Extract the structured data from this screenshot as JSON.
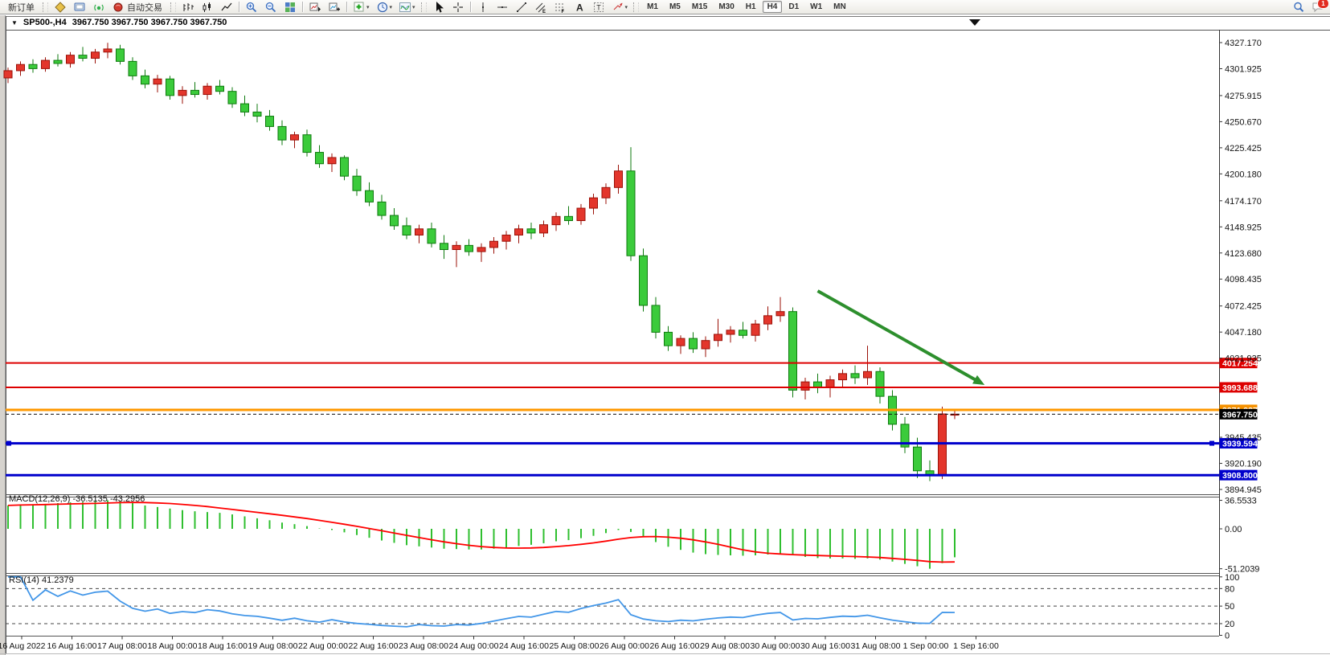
{
  "toolbar": {
    "new_order_label": "新订单",
    "auto_trading_label": "自动交易",
    "timeframes": [
      "M1",
      "M5",
      "M15",
      "M30",
      "H1",
      "H4",
      "D1",
      "W1",
      "MN"
    ],
    "active_timeframe": "H4",
    "notification_badge": "1",
    "items": [
      {
        "kind": "text",
        "name": "new-order-button",
        "label": "新订单"
      },
      {
        "kind": "grip"
      },
      {
        "kind": "icon",
        "name": "market-watch-icon",
        "icon": "quote"
      },
      {
        "kind": "icon",
        "name": "terminal-icon",
        "icon": "terminal"
      },
      {
        "kind": "icon",
        "name": "signals-icon",
        "icon": "signal"
      },
      {
        "kind": "icon-text",
        "name": "auto-trading-button",
        "icon": "autodot",
        "label": "自动交易"
      },
      {
        "kind": "grip"
      },
      {
        "kind": "icon",
        "name": "bar-chart-mode-icon",
        "icon": "barchart"
      },
      {
        "kind": "icon",
        "name": "candlestick-mode-icon",
        "icon": "candle"
      },
      {
        "kind": "icon",
        "name": "line-chart-mode-icon",
        "icon": "linechart"
      },
      {
        "kind": "sep"
      },
      {
        "kind": "icon",
        "name": "zoom-in-icon",
        "icon": "zoomin"
      },
      {
        "kind": "icon",
        "name": "zoom-out-icon",
        "icon": "zoomout"
      },
      {
        "kind": "icon",
        "name": "tile-windows-icon",
        "icon": "tiles"
      },
      {
        "kind": "sep"
      },
      {
        "kind": "icon",
        "name": "profile-icon",
        "icon": "profile"
      },
      {
        "kind": "icon",
        "name": "profile-charts-icon",
        "icon": "profile2"
      },
      {
        "kind": "sep"
      },
      {
        "kind": "icon",
        "name": "new-chart-button",
        "icon": "addchart",
        "dropdown": true
      },
      {
        "kind": "icon",
        "name": "periods-button",
        "icon": "clock",
        "dropdown": true
      },
      {
        "kind": "icon",
        "name": "indicators-button",
        "icon": "wave",
        "dropdown": true
      },
      {
        "kind": "grip"
      },
      {
        "kind": "icon",
        "name": "cursor-tool",
        "icon": "cursor"
      },
      {
        "kind": "icon",
        "name": "crosshair-tool",
        "icon": "crosshair"
      },
      {
        "kind": "sep"
      },
      {
        "kind": "icon",
        "name": "vertical-line-tool",
        "icon": "vline"
      },
      {
        "kind": "icon",
        "name": "horizontal-line-tool",
        "icon": "hline"
      },
      {
        "kind": "icon",
        "name": "trendline-tool",
        "icon": "trend"
      },
      {
        "kind": "icon",
        "name": "channel-tool",
        "icon": "channel"
      },
      {
        "kind": "icon",
        "name": "fibonacci-tool",
        "icon": "fibo"
      },
      {
        "kind": "icon",
        "name": "text-tool",
        "icon": "texta"
      },
      {
        "kind": "icon",
        "name": "text-label-tool",
        "icon": "textt"
      },
      {
        "kind": "icon",
        "name": "shapes-tool",
        "icon": "shapes",
        "dropdown": true
      },
      {
        "kind": "grip"
      },
      {
        "kind": "timeframes"
      },
      {
        "kind": "spacer"
      },
      {
        "kind": "icon",
        "name": "search-icon",
        "icon": "search"
      },
      {
        "kind": "icon",
        "name": "chat-icon",
        "icon": "chat",
        "badge": "1"
      }
    ]
  },
  "chart": {
    "symbol_period": "SP500-,H4",
    "ohlc_text": "3967.750 3967.750 3967.750 3967.750"
  },
  "indicators": {
    "macd_label": "MACD(12,26,9) -36.5135 -43.2956",
    "rsi_label": "RSI(14) 41.2379"
  },
  "price_axis_ticks": [
    "4327.170",
    "4301.925",
    "4275.915",
    "4250.670",
    "4225.425",
    "4200.180",
    "4174.170",
    "4148.925",
    "4123.680",
    "4098.435",
    "4072.425",
    "4047.180",
    "4021.935",
    "3945.435",
    "3920.190",
    "3894.945"
  ],
  "macd_axis_ticks": [
    "36.5533",
    "0.00",
    "-51.2039"
  ],
  "rsi_axis_ticks": [
    "100",
    "80",
    "50",
    "20",
    "0"
  ],
  "rsi_dashed_levels": [
    80,
    50,
    20
  ],
  "horizontal_lines": [
    {
      "label": "4017.254",
      "price": 4017.254,
      "color": "#dd0000",
      "width": 2,
      "dash": null,
      "label_bg": "#dd0000",
      "label_fg": "#ffffff"
    },
    {
      "label": "3993.688",
      "price": 3993.688,
      "color": "#dd0000",
      "width": 2,
      "dash": null,
      "label_bg": "#dd0000",
      "label_fg": "#ffffff"
    },
    {
      "label": "3971.937",
      "price": 3971.937,
      "color": "#ff9900",
      "width": 3,
      "dash": null,
      "label_bg": "#f59100",
      "label_fg": "#ffffff"
    },
    {
      "label": "3967.750",
      "price": 3967.75,
      "color": "#111111",
      "width": 1,
      "dash": "4 3",
      "label_bg": "#000000",
      "label_fg": "#ffffff"
    },
    {
      "label": "3939.594",
      "price": 3939.594,
      "color": "#0000cc",
      "width": 3,
      "dash": null,
      "label_bg": "#0000cc",
      "label_fg": "#ffffff",
      "markers": true
    },
    {
      "label": "3908.800",
      "price": 3908.8,
      "color": "#0000cc",
      "width": 3,
      "dash": null,
      "label_bg": "#0000cc",
      "label_fg": "#ffffff"
    }
  ],
  "chart_data": {
    "type": "candlestick",
    "title": "SP500-,H4",
    "symbol": "SP500-",
    "period": "H4",
    "ylim": [
      3894.945,
      4327.17
    ],
    "x_labels": [
      "16 Aug 2022",
      "16 Aug 16:00",
      "17 Aug 08:00",
      "18 Aug 00:00",
      "18 Aug 16:00",
      "19 Aug 08:00",
      "22 Aug 00:00",
      "22 Aug 16:00",
      "23 Aug 08:00",
      "24 Aug 00:00",
      "24 Aug 16:00",
      "25 Aug 08:00",
      "26 Aug 00:00",
      "26 Aug 16:00",
      "29 Aug 08:00",
      "30 Aug 00:00",
      "30 Aug 16:00",
      "31 Aug 08:00",
      "1 Sep 00:00",
      "1 Sep 16:00"
    ],
    "candles": [
      [
        4293,
        4303,
        4288,
        4300
      ],
      [
        4300,
        4309,
        4295,
        4306
      ],
      [
        4306,
        4311,
        4298,
        4302
      ],
      [
        4302,
        4313,
        4299,
        4310
      ],
      [
        4310,
        4316,
        4304,
        4307
      ],
      [
        4307,
        4318,
        4303,
        4315
      ],
      [
        4315,
        4323,
        4309,
        4312
      ],
      [
        4312,
        4321,
        4307,
        4318
      ],
      [
        4318,
        4327,
        4312,
        4321
      ],
      [
        4321,
        4325,
        4306,
        4309
      ],
      [
        4309,
        4313,
        4291,
        4295
      ],
      [
        4295,
        4301,
        4283,
        4287
      ],
      [
        4287,
        4296,
        4279,
        4292
      ],
      [
        4292,
        4295,
        4272,
        4276
      ],
      [
        4276,
        4285,
        4268,
        4281
      ],
      [
        4281,
        4289,
        4274,
        4277
      ],
      [
        4277,
        4288,
        4272,
        4285
      ],
      [
        4285,
        4291,
        4277,
        4280
      ],
      [
        4280,
        4284,
        4264,
        4268
      ],
      [
        4268,
        4276,
        4256,
        4260
      ],
      [
        4260,
        4268,
        4250,
        4256
      ],
      [
        4256,
        4262,
        4242,
        4246
      ],
      [
        4246,
        4252,
        4228,
        4233
      ],
      [
        4233,
        4241,
        4225,
        4238
      ],
      [
        4238,
        4243,
        4217,
        4221
      ],
      [
        4221,
        4228,
        4206,
        4210
      ],
      [
        4210,
        4220,
        4202,
        4216
      ],
      [
        4216,
        4218,
        4194,
        4198
      ],
      [
        4198,
        4205,
        4179,
        4184
      ],
      [
        4184,
        4192,
        4169,
        4173
      ],
      [
        4173,
        4180,
        4156,
        4160
      ],
      [
        4160,
        4167,
        4146,
        4150
      ],
      [
        4150,
        4158,
        4137,
        4141
      ],
      [
        4141,
        4151,
        4133,
        4147
      ],
      [
        4147,
        4153,
        4129,
        4133
      ],
      [
        4133,
        4141,
        4118,
        4127
      ],
      [
        4127,
        4135,
        4110,
        4131
      ],
      [
        4131,
        4137,
        4121,
        4125
      ],
      [
        4125,
        4133,
        4115,
        4129
      ],
      [
        4129,
        4139,
        4123,
        4135
      ],
      [
        4135,
        4145,
        4127,
        4141
      ],
      [
        4141,
        4151,
        4133,
        4147
      ],
      [
        4147,
        4153,
        4137,
        4143
      ],
      [
        4143,
        4155,
        4139,
        4151
      ],
      [
        4151,
        4163,
        4145,
        4159
      ],
      [
        4159,
        4169,
        4151,
        4155
      ],
      [
        4155,
        4171,
        4151,
        4167
      ],
      [
        4167,
        4181,
        4161,
        4177
      ],
      [
        4177,
        4191,
        4171,
        4187
      ],
      [
        4187,
        4209,
        4181,
        4203
      ],
      [
        4203,
        4226,
        4116,
        4121
      ],
      [
        4121,
        4128,
        4067,
        4073
      ],
      [
        4073,
        4081,
        4041,
        4047
      ],
      [
        4047,
        4053,
        4029,
        4034
      ],
      [
        4034,
        4044,
        4026,
        4041
      ],
      [
        4041,
        4047,
        4027,
        4031
      ],
      [
        4031,
        4043,
        4023,
        4039
      ],
      [
        4039,
        4060,
        4033,
        4045
      ],
      [
        4045,
        4053,
        4037,
        4049
      ],
      [
        4049,
        4057,
        4041,
        4044
      ],
      [
        4044,
        4059,
        4038,
        4055
      ],
      [
        4055,
        4072,
        4049,
        4063
      ],
      [
        4063,
        4081,
        4057,
        4067
      ],
      [
        4067,
        4071,
        3984,
        3991
      ],
      [
        3991,
        4003,
        3982,
        3999
      ],
      [
        3999,
        4007,
        3988,
        3994
      ],
      [
        3994,
        4005,
        3984,
        4001
      ],
      [
        4001,
        4011,
        3993,
        4007
      ],
      [
        4007,
        4015,
        3997,
        4003
      ],
      [
        4003,
        4034,
        3996,
        4009
      ],
      [
        4009,
        4013,
        3978,
        3985
      ],
      [
        3985,
        3991,
        3952,
        3958
      ],
      [
        3958,
        3965,
        3930,
        3936
      ],
      [
        3936,
        3945,
        3906,
        3913
      ],
      [
        3913,
        3923,
        3903,
        3909
      ],
      [
        3909,
        3975,
        3905,
        3968
      ],
      [
        3967.75,
        3972,
        3963,
        3967.75
      ]
    ],
    "macd_histogram": [
      30,
      31,
      31.5,
      32,
      33,
      34,
      34.5,
      35,
      36.5533,
      35,
      33,
      30,
      28,
      26,
      24,
      22.5,
      21.5,
      20.5,
      18.5,
      16,
      13.5,
      11,
      8,
      6,
      3.5,
      0.5,
      -1.5,
      -4.5,
      -8,
      -11.5,
      -15,
      -18,
      -21,
      -22.5,
      -24,
      -25.5,
      -26,
      -26.5,
      -26.5,
      -25.5,
      -24,
      -22,
      -20.5,
      -18.5,
      -16,
      -14.5,
      -12,
      -9,
      -5.5,
      -1.5,
      -4,
      -10,
      -17,
      -23,
      -27,
      -30.5,
      -32.5,
      -33.5,
      -34,
      -34.5,
      -34,
      -33,
      -31.5,
      -34,
      -36,
      -37.5,
      -38,
      -38,
      -38.5,
      -38,
      -39.5,
      -42,
      -45,
      -48,
      -51.2039,
      -44,
      -36.5135
    ],
    "macd_signal_period": 9,
    "macd_current": -36.5135,
    "macd_signal_current": -43.2956,
    "rsi_period": 14,
    "rsi_current": 41.2379,
    "trend_arrow": {
      "from_index": 65,
      "from_price": 4087,
      "to_index": 78.4,
      "to_price": 3996,
      "color": "#2d8f2d"
    },
    "colors": {
      "bull": "#e3362c",
      "bull_edge": "#9b1007",
      "bear": "#3bcb3b",
      "bear_edge": "#0e7a0e",
      "macd_hist": "#2fbf2f",
      "macd_signal": "#ff0000",
      "rsi_line": "#4296e8"
    }
  }
}
